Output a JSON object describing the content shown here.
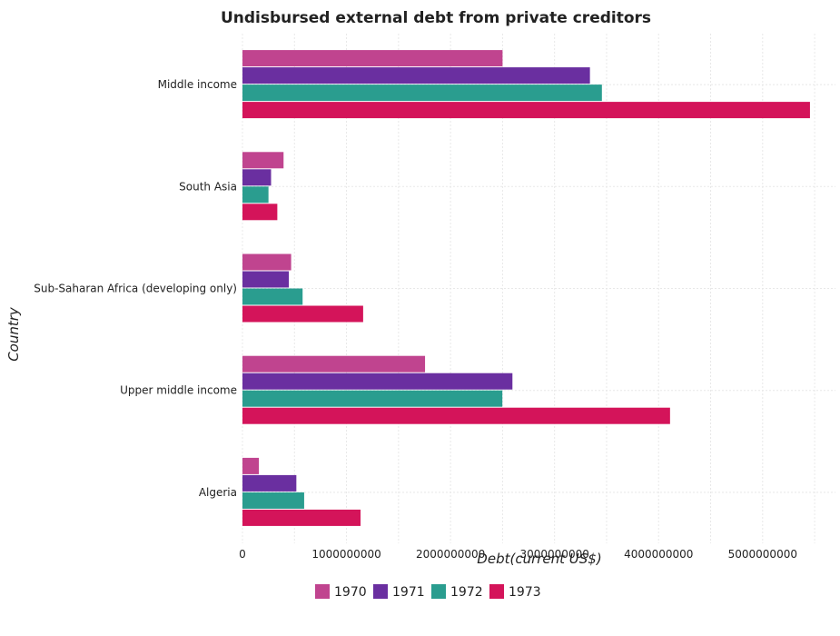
{
  "chart_data": {
    "type": "bar",
    "orientation": "horizontal",
    "title": "Undisbursed external debt from private creditors",
    "xlabel": "Debt(current US$)",
    "ylabel": "Country",
    "categories": [
      "Middle income",
      "South Asia",
      "Sub-Saharan Africa (developing only)",
      "Upper middle income",
      "Algeria"
    ],
    "series": [
      {
        "name": "1970",
        "color": "#c0448f",
        "values": [
          2500000000,
          395000000,
          468000000,
          1755000000,
          158000000
        ]
      },
      {
        "name": "1971",
        "color": "#6a2fa0",
        "values": [
          3340000000,
          275000000,
          446000000,
          2595000000,
          518000000
        ]
      },
      {
        "name": "1972",
        "color": "#2a9d8f",
        "values": [
          3455000000,
          250000000,
          578000000,
          2498000000,
          593000000
        ]
      },
      {
        "name": "1973",
        "color": "#d4145a",
        "values": [
          5455000000,
          335000000,
          1160000000,
          4110000000,
          1135000000
        ]
      }
    ],
    "xlim": [
      0,
      5700000000
    ],
    "xticks": [
      0,
      1000000000,
      2000000000,
      3000000000,
      4000000000,
      5000000000
    ],
    "xtick_labels": [
      "0",
      "1000000000",
      "2000000000",
      "3000000000",
      "4000000000",
      "5000000000"
    ],
    "grid": true,
    "legend_position": "bottom-center"
  }
}
